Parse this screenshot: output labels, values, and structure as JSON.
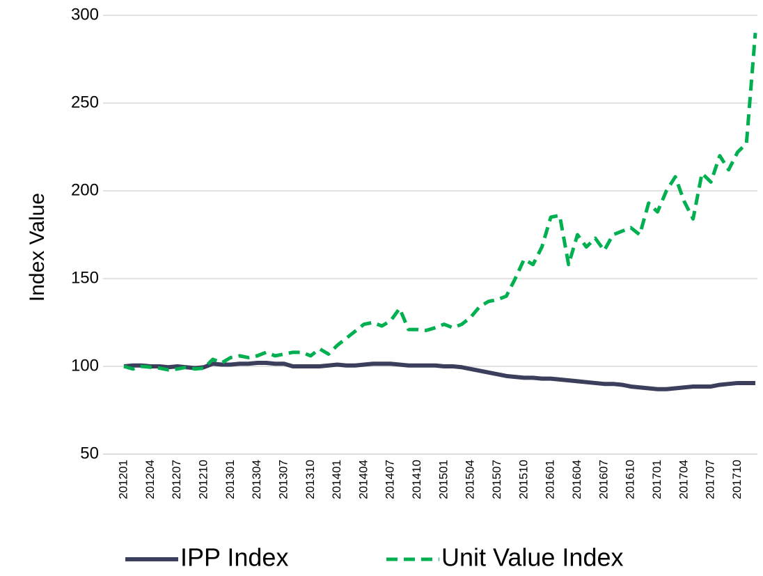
{
  "chart_data": {
    "type": "line",
    "y_label": "Index Value",
    "categories": [
      "201201",
      null,
      null,
      "201204",
      null,
      null,
      "201207",
      null,
      null,
      "201210",
      null,
      null,
      "201301",
      null,
      null,
      "201304",
      null,
      null,
      "201307",
      null,
      null,
      "201310",
      null,
      null,
      "201401",
      null,
      null,
      "201404",
      null,
      null,
      "201407",
      null,
      null,
      "201410",
      null,
      null,
      "201501",
      null,
      null,
      "201504",
      null,
      null,
      "201507",
      null,
      null,
      "201510",
      null,
      null,
      "201601",
      null,
      null,
      "201604",
      null,
      null,
      "201607",
      null,
      null,
      "201610",
      null,
      null,
      "201701",
      null,
      null,
      "201704",
      null,
      null,
      "201707",
      null,
      null,
      "201710",
      null,
      null
    ],
    "series": [
      {
        "name": "IPP Index",
        "color": "#3b3f5c",
        "dash": false,
        "values": [
          100,
          100.5,
          100.5,
          100,
          100,
          99.5,
          100,
          99.5,
          99,
          99.5,
          101.5,
          101,
          101,
          101.5,
          101.5,
          102,
          102,
          101.5,
          101.5,
          100,
          100,
          100,
          100,
          100.5,
          101,
          100.5,
          100.5,
          101,
          101.5,
          101.5,
          101.5,
          101,
          100.5,
          100.5,
          100.5,
          100.5,
          100,
          100,
          99.5,
          98.5,
          97.5,
          96.5,
          95.5,
          94.5,
          94,
          93.5,
          93.5,
          93,
          93,
          92.5,
          92,
          91.5,
          91,
          90.5,
          90,
          90,
          89.5,
          88.5,
          88,
          87.5,
          87,
          87,
          87.5,
          88,
          88.5,
          88.5,
          88.5,
          89.5,
          90,
          90.5,
          90.5,
          90.5
        ]
      },
      {
        "name": "Unit Value Index",
        "color": "#00b050",
        "dash": true,
        "values": [
          100,
          98.5,
          100,
          99.5,
          99,
          98,
          98.5,
          99.5,
          98.5,
          99,
          104,
          102,
          105,
          106,
          105,
          106,
          108,
          106,
          107,
          108,
          108,
          106,
          110,
          107,
          112,
          116,
          120,
          124,
          125,
          123,
          126,
          133,
          121,
          121,
          120.5,
          122,
          124,
          122,
          124,
          128,
          134,
          137,
          138,
          140,
          150,
          161,
          158,
          168,
          185,
          186,
          158,
          175,
          168,
          173,
          166,
          175,
          177,
          179,
          175,
          193,
          188,
          200,
          208,
          194,
          184,
          210,
          205,
          220,
          212,
          222,
          227,
          290
        ]
      }
    ],
    "ylim": [
      50,
      300
    ],
    "yticks": [
      50,
      100,
      150,
      200,
      250,
      300
    ],
    "grid": true,
    "legend": "bottom"
  }
}
